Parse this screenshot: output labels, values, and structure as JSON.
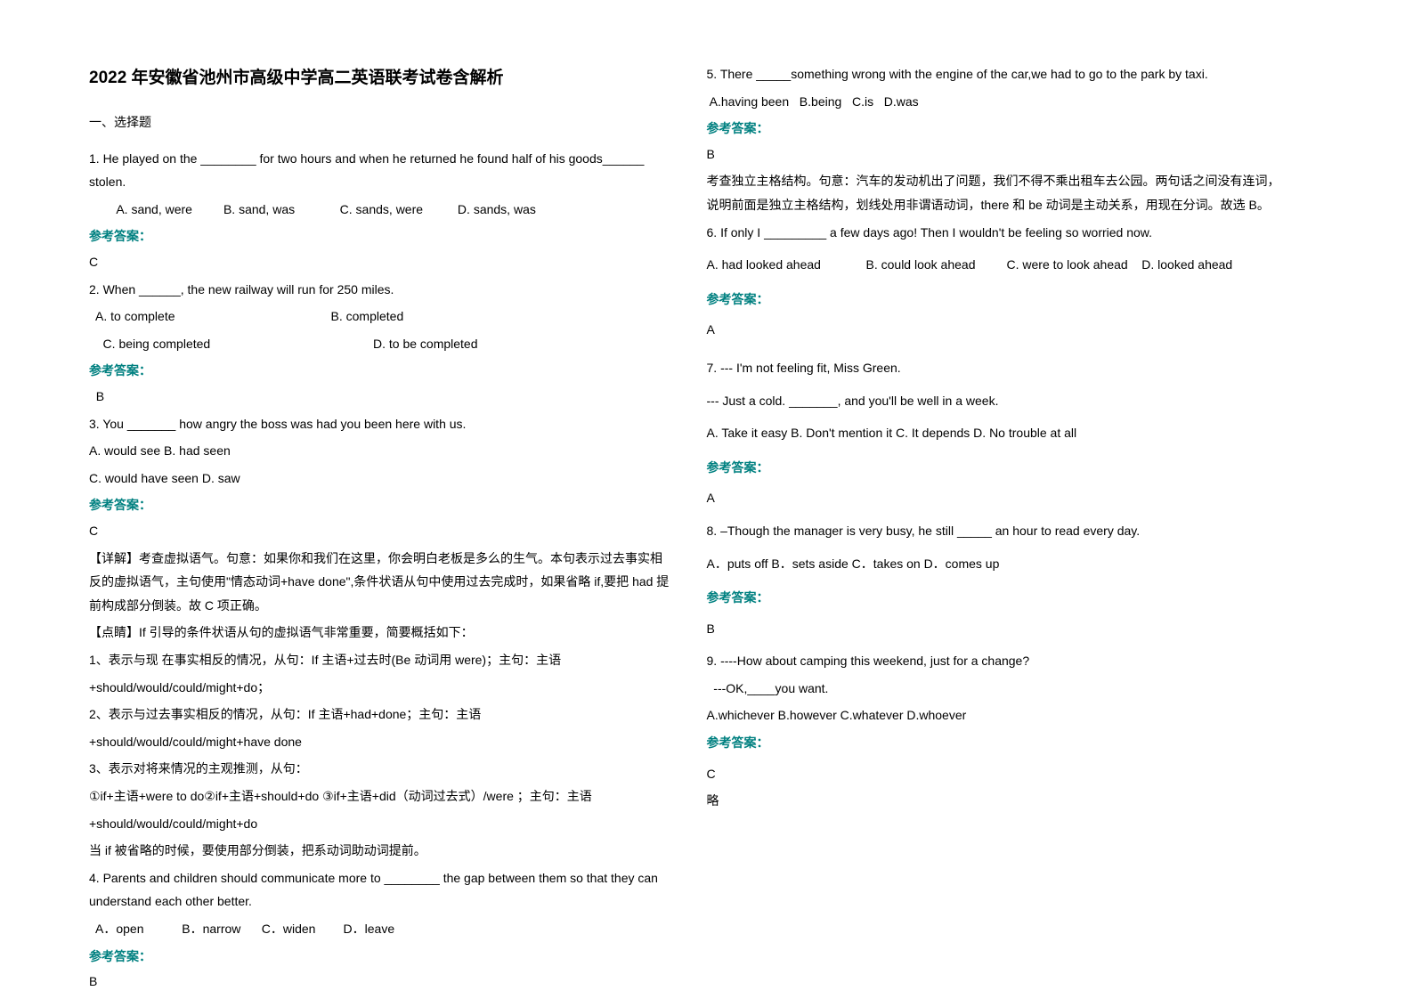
{
  "title": "2022 年安徽省池州市高级中学高二英语联考试卷含解析",
  "section1_heading": "一、选择题",
  "q1": {
    "stem": "1. He played on the ________ for two hours and when he returned he found half of his goods______ stolen.",
    "options": "        A. sand, were         B. sand, was             C. sands, were          D. sands, was",
    "answer_label": "参考答案：",
    "answer": "C"
  },
  "q2": {
    "stem": "2. When ______, the new railway will run for 250 miles.",
    "opt_line1": "  A. to complete                                             B. completed",
    "opt_line2": "    C. being completed                                               D. to be completed",
    "answer_label": "参考答案：",
    "answer": "  B"
  },
  "q3": {
    "stem": "3. You _______ how angry the boss was had you been here with us.",
    "opt_line1": "A. would see   B. had seen",
    "opt_line2": "C. would have seen   D. saw",
    "answer_label": "参考答案：",
    "answer": "C",
    "detail1": "【详解】考查虚拟语气。句意：如果你和我们在这里，你会明白老板是多么的生气。本句表示过去事实相反的虚拟语气，主句使用\"情态动词+have done\",条件状语从句中使用过去完成时，如果省略 if,要把 had 提前构成部分倒装。故 C 项正确。",
    "detail2": "【点睛】If 引导的条件状语从句的虚拟语气非常重要，简要概括如下：",
    "detail3": "1、表示与现 在事实相反的情况，从句：If 主语+过去时(Be 动词用 were)；主句：主语",
    "detail4": "+should/would/could/might+do；",
    "detail5": "2、表示与过去事实相反的情况，从句：If 主语+had+done；主句：主语",
    "detail6": "+should/would/could/might+have done",
    "detail7": "3、表示对将来情况的主观推测，从句：",
    "detail8": "①if+主语+were to do②if+主语+should+do ③if+主语+did（动词过去式）/were ；主句：主语",
    "detail9": "+should/would/could/might+do",
    "detail10": "当 if 被省略的时候，要使用部分倒装，把系动词助动词提前。"
  },
  "q4": {
    "stem": "4. Parents and children should communicate more to ________ the gap between them so that they can understand each other better.",
    "options": "  A．open           B．narrow      C．widen        D．leave",
    "answer_label": "参考答案：",
    "answer": "B"
  },
  "q5": {
    "stem": "5. There _____something wrong with the engine of the car,we had to go to the park by taxi.",
    "options": " A.having been   B.being   C.is   D.was",
    "answer_label": "参考答案：",
    "answer": "B",
    "detail": "考查独立主格结构。句意：汽车的发动机出了问题，我们不得不乘出租车去公园。两句话之间没有连词，说明前面是独立主格结构，划线处用非谓语动词，there 和 be 动词是主动关系，用现在分词。故选 B。"
  },
  "q6": {
    "stem": "6. If only I _________ a few days ago! Then I wouldn't be feeling so worried now.",
    "options": "A. had looked ahead             B. could look ahead         C. were to look ahead    D. looked ahead",
    "answer_label": "参考答案：",
    "answer": "A"
  },
  "q7": {
    "stem": "7. --- I'm not feeling fit, Miss Green.",
    "stem2": "--- Just a cold. _______, and you'll be well in a week.",
    "options": "A. Take it easy   B. Don't mention it   C. It depends     D. No trouble at all",
    "answer_label": "参考答案：",
    "answer": "A"
  },
  "q8": {
    "stem": "8. –Though the manager is very busy, he still _____ an hour to read every day.",
    "options": "A．puts off  B．sets aside  C．takes on     D．comes up",
    "answer_label": "参考答案：",
    "answer": "B"
  },
  "q9": {
    "stem": "9. ----How about camping this weekend, just for a change?",
    "stem2": "  ---OK,____you want.",
    "options": "A.whichever   B.however  C.whatever  D.whoever",
    "answer_label": "参考答案：",
    "answer": "C",
    "detail": "略"
  }
}
